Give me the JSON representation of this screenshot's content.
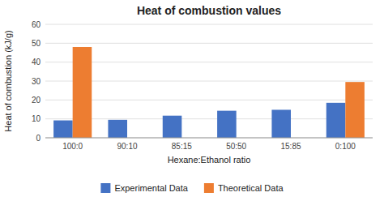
{
  "chart_data": {
    "type": "bar",
    "title": "Heat of combustion values",
    "xlabel": "Hexane:Ethanol ratio",
    "ylabel": "Heat of combustion (kJ/g)",
    "categories": [
      "100:0",
      "90:10",
      "85:15",
      "50:50",
      "15:85",
      "0:100"
    ],
    "series": [
      {
        "name": "Experimental Data",
        "color": "#4472C4",
        "values": [
          9.2,
          9.5,
          11.7,
          14.3,
          14.8,
          18.5
        ]
      },
      {
        "name": "Theoretical Data",
        "color": "#ED7D31",
        "values": [
          48.0,
          0,
          0,
          0,
          0,
          29.5
        ]
      }
    ],
    "ylim": [
      0,
      60
    ],
    "yticks": [
      0,
      10,
      20,
      30,
      40,
      50,
      60
    ],
    "grid": true,
    "legend": "bottom"
  }
}
